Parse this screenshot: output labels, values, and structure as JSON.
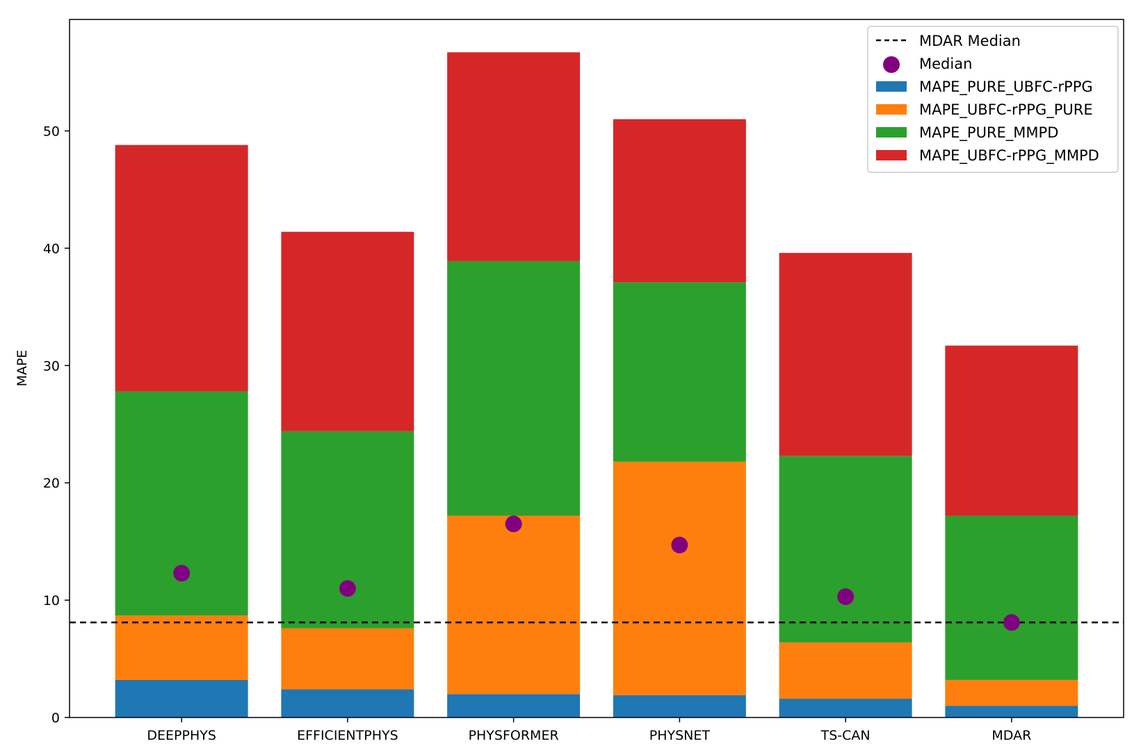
{
  "chart_data": {
    "type": "bar",
    "stacked": true,
    "title": "",
    "xlabel": "",
    "ylabel": "MAPE",
    "ylim": [
      0,
      59.5
    ],
    "yticks": [
      0,
      10,
      20,
      30,
      40,
      50
    ],
    "grid": false,
    "legend_position": "top-right",
    "categories": [
      "DEEPPHYS",
      "EFFICIENTPHYS",
      "PHYSFORMER",
      "PHYSNET",
      "TS-CAN",
      "MDAR"
    ],
    "series": [
      {
        "name": "MAPE_PURE_UBFC-rPPG",
        "color": "#1f77b4",
        "values": [
          3.2,
          2.4,
          2.0,
          1.9,
          1.6,
          1.0
        ]
      },
      {
        "name": "MAPE_UBFC-rPPG_PURE",
        "color": "#ff7f0e",
        "values": [
          5.5,
          5.2,
          15.2,
          19.9,
          4.8,
          2.2
        ]
      },
      {
        "name": "MAPE_PURE_MMPD",
        "color": "#2ca02c",
        "values": [
          19.1,
          16.8,
          21.7,
          15.3,
          15.9,
          14.0
        ]
      },
      {
        "name": "MAPE_UBFC-rPPG_MMPD",
        "color": "#d62728",
        "values": [
          21.0,
          17.0,
          17.8,
          13.9,
          17.3,
          14.5
        ]
      }
    ],
    "median": {
      "name": "Median",
      "color": "#800080",
      "values": [
        12.3,
        11.0,
        16.5,
        14.7,
        10.3,
        8.1
      ]
    },
    "reference_line": {
      "name": "MDAR Median",
      "value": 8.1,
      "color": "#000000",
      "style": "dashed"
    }
  }
}
